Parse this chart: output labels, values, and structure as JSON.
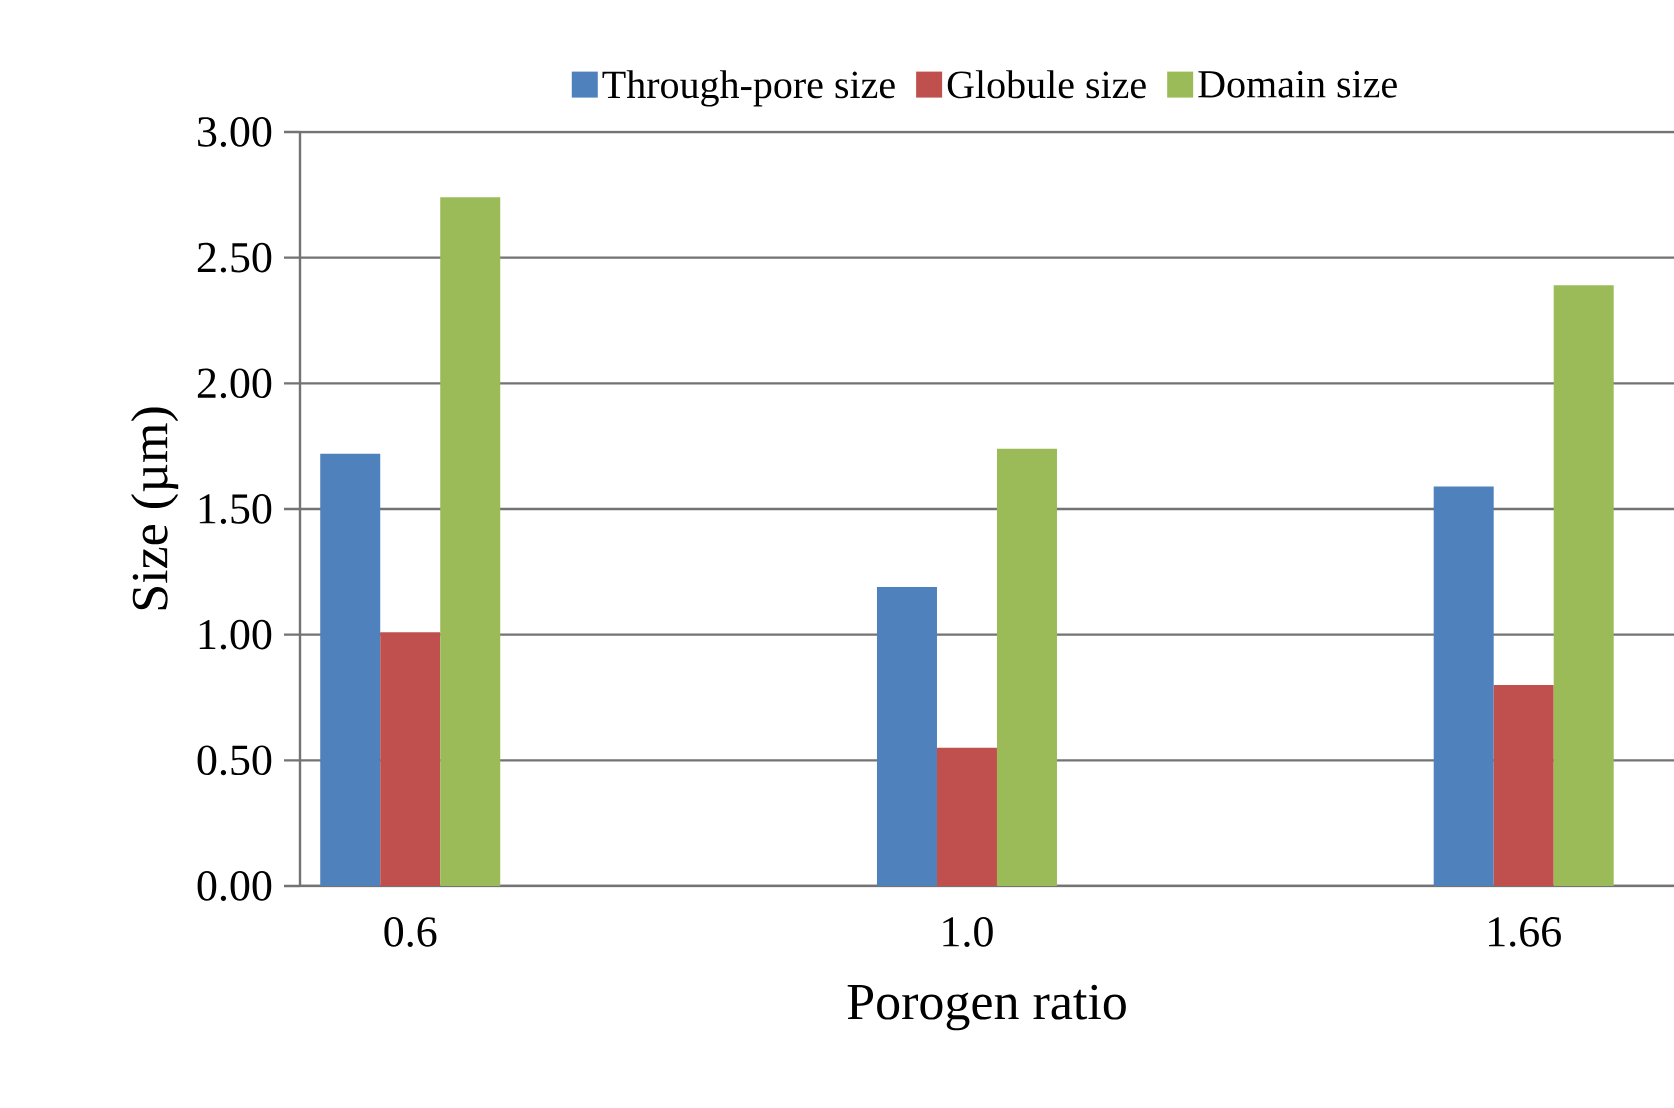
{
  "chart_data": {
    "type": "bar",
    "xlabel": "Porogen ratio",
    "ylabel": "Size (µm)",
    "categories": [
      "0.6",
      "1.0",
      "1.66"
    ],
    "series": [
      {
        "name": "Through-pore size",
        "color": "#4f81bd",
        "values": [
          1.72,
          1.19,
          1.59
        ]
      },
      {
        "name": "Globule size",
        "color": "#c0504d",
        "values": [
          1.01,
          0.55,
          0.8
        ]
      },
      {
        "name": "Domain size",
        "color": "#9bbb59",
        "values": [
          2.74,
          1.74,
          2.39
        ]
      }
    ],
    "ylim": [
      0,
      3
    ],
    "yticks": [
      {
        "value": 0,
        "label": "0.00"
      },
      {
        "value": 0.5,
        "label": "0.50"
      },
      {
        "value": 1,
        "label": "1.00"
      },
      {
        "value": 1.5,
        "label": "1.50"
      },
      {
        "value": 2,
        "label": "2.00"
      },
      {
        "value": 2.5,
        "label": "2.50"
      },
      {
        "value": 3,
        "label": "3.00"
      }
    ],
    "grid": "y",
    "legend": "top"
  }
}
